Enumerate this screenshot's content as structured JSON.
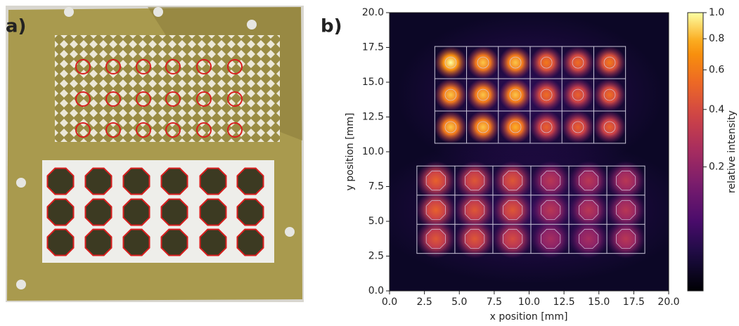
{
  "panel_labels": [
    "a)",
    "b)"
  ],
  "chart_data": {
    "type": "heatmap",
    "xlabel": "x position [mm]",
    "ylabel": "y position [mm]",
    "colorbar_label": "relative intensity",
    "colormap": "inferno",
    "color_norm": {
      "type": "power",
      "gamma": 0.3
    },
    "clim": [
      0.02,
      1
    ],
    "cticks": [
      0.2,
      0.4,
      0.6,
      0.8,
      {
        "value": 1,
        "label": "1.0"
      }
    ],
    "xlim": [
      0,
      20
    ],
    "ylim": [
      0,
      20
    ],
    "xticks": [
      {
        "value": 0,
        "label": "0.0"
      },
      2.5,
      {
        "value": 5,
        "label": "5.0"
      },
      7.5,
      {
        "value": 10,
        "label": "10.0"
      },
      12.5,
      {
        "value": 15,
        "label": "15.0"
      },
      17.5,
      {
        "value": 20,
        "label": "20.0"
      }
    ],
    "yticks": [
      {
        "value": 0,
        "label": "0.0"
      },
      2.5,
      {
        "value": 5,
        "label": "5.0"
      },
      7.5,
      {
        "value": 10,
        "label": "10.0"
      },
      12.5,
      {
        "value": 15,
        "label": "15.0"
      },
      17.5,
      {
        "value": 20,
        "label": "20.0"
      }
    ],
    "groups": [
      {
        "x": [
          4.38,
          6.7,
          9.02,
          11.24,
          13.5,
          15.77
        ],
        "y": [
          16.41,
          14.09,
          11.77
        ],
        "values": [
          [
            1.0,
            0.85,
            0.85,
            0.6,
            0.55,
            0.6
          ],
          [
            0.85,
            0.85,
            0.85,
            0.55,
            0.5,
            0.55
          ],
          [
            0.85,
            0.85,
            0.8,
            0.5,
            0.5,
            0.5
          ]
        ]
      },
      {
        "x": [
          3.32,
          6.1,
          8.82,
          11.54,
          14.26,
          16.93
        ],
        "y": [
          7.93,
          5.81,
          3.74
        ],
        "values": [
          [
            0.5,
            0.45,
            0.45,
            0.3,
            0.3,
            0.3
          ],
          [
            0.5,
            0.45,
            0.45,
            0.3,
            0.3,
            0.3
          ],
          [
            0.45,
            0.45,
            0.4,
            0.25,
            0.25,
            0.3
          ]
        ]
      }
    ]
  }
}
